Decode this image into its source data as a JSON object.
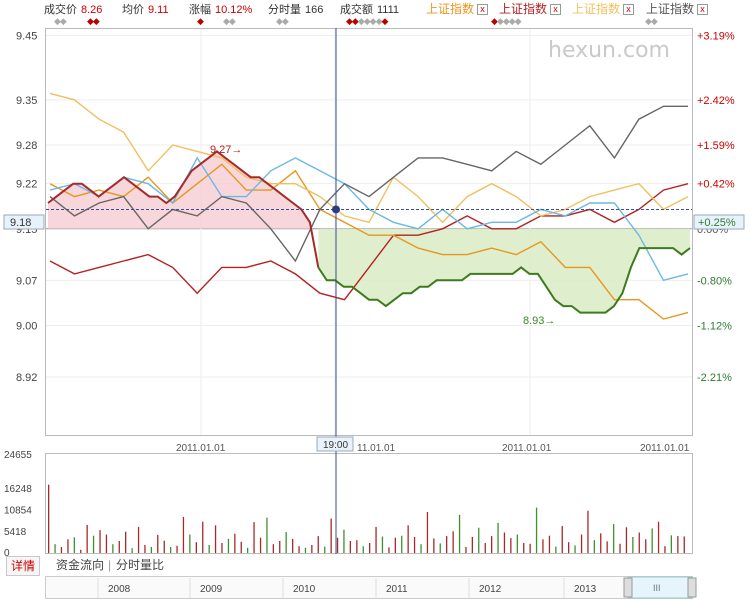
{
  "quote": {
    "close_label": "成交价",
    "close_value": "8.26",
    "avg_label": "均价",
    "avg_value": "9.11",
    "change_label": "涨幅",
    "change_value": "10.12%",
    "vol_label": "分时量",
    "vol_value": "166",
    "amount_label": "成交额",
    "amount_value": "1111"
  },
  "index_tabs": [
    {
      "label": "上证指数",
      "color": "#e8961e"
    },
    {
      "label": "上证指数",
      "color": "#b22222"
    },
    {
      "label": "上证指数",
      "color": "#f0c060"
    },
    {
      "label": "上证指数",
      "color": "#555555"
    }
  ],
  "close_mark": "x",
  "watermark": "hexun.com",
  "crosshair": {
    "time_label": "19:00",
    "price_label": "9.18",
    "pct_label": "+0.25%"
  },
  "annotations": {
    "high": "9.27→",
    "low": "8.93→"
  },
  "volume_axis": [
    "24655",
    "16248",
    "10854",
    "5418",
    "0"
  ],
  "bottom": {
    "detail_button": "详情",
    "tab_flow": "资金流向",
    "tab_ratio": "分时量比",
    "separator": "|"
  },
  "navigator": {
    "years": [
      "2008",
      "2009",
      "2010",
      "2011",
      "2012",
      "2013"
    ],
    "handle": "III"
  },
  "chart_data": {
    "type": "line",
    "prev_close": 9.15,
    "y_ticks": [
      9.45,
      9.35,
      9.28,
      9.22,
      9.15,
      9.07,
      9.0,
      8.92
    ],
    "y_tick_labels": [
      "9.45",
      "9.35",
      "9.28",
      "9.22",
      "9.15",
      "9.07",
      "9.00",
      "8.92"
    ],
    "y_pct_labels": [
      "+3.19%",
      "+2.42%",
      "+1.59%",
      "+0.42%",
      "0.00%",
      "-0.80%",
      "-1.12%",
      "-2.21%"
    ],
    "ylim": [
      8.83,
      9.46
    ],
    "x_tick_labels": [
      "2011.01.01",
      "11.01.01",
      "2011.01.01",
      "2011.01.01"
    ],
    "series": [
      {
        "color": "#b22222",
        "values": [
          9.1,
          9.08,
          9.09,
          9.1,
          9.11,
          9.09,
          9.05,
          9.09,
          9.09,
          9.1,
          9.08,
          9.05,
          9.04,
          9.09,
          9.14,
          9.14,
          9.15,
          9.17,
          9.15,
          9.15,
          9.17,
          9.17,
          9.18,
          9.16,
          9.18,
          9.21,
          9.22
        ]
      },
      {
        "color": "#e8961e",
        "values": [
          9.22,
          9.2,
          9.21,
          9.2,
          9.23,
          9.19,
          9.22,
          9.25,
          9.21,
          9.21,
          9.24,
          9.18,
          9.16,
          9.14,
          9.14,
          9.12,
          9.11,
          9.11,
          9.12,
          9.11,
          9.13,
          9.09,
          9.09,
          9.04,
          9.04,
          9.01,
          9.02
        ]
      },
      {
        "color": "#f0c060",
        "values": [
          9.36,
          9.35,
          9.32,
          9.3,
          9.24,
          9.28,
          9.27,
          9.26,
          9.23,
          9.22,
          9.22,
          9.2,
          9.17,
          9.16,
          9.23,
          9.2,
          9.16,
          9.2,
          9.22,
          9.2,
          9.17,
          9.18,
          9.2,
          9.21,
          9.22,
          9.18,
          9.2
        ]
      },
      {
        "color": "#6cb8e4",
        "values": [
          9.21,
          9.22,
          9.2,
          9.23,
          9.22,
          9.19,
          9.26,
          9.2,
          9.2,
          9.24,
          9.26,
          9.24,
          9.22,
          9.18,
          9.16,
          9.15,
          9.18,
          9.15,
          9.16,
          9.16,
          9.18,
          9.17,
          9.19,
          9.19,
          9.14,
          9.07,
          9.08
        ]
      },
      {
        "color": "#666666",
        "values": [
          9.2,
          9.17,
          9.19,
          9.2,
          9.15,
          9.18,
          9.17,
          9.2,
          9.19,
          9.15,
          9.1,
          9.18,
          9.22,
          9.2,
          9.23,
          9.26,
          9.26,
          9.25,
          9.24,
          9.27,
          9.25,
          9.28,
          9.31,
          9.26,
          9.32,
          9.34,
          9.34
        ]
      }
    ],
    "intraday": [
      9.19,
      9.2,
      9.21,
      9.22,
      9.22,
      9.21,
      9.2,
      9.21,
      9.22,
      9.23,
      9.22,
      9.21,
      9.2,
      9.2,
      9.19,
      9.2,
      9.22,
      9.24,
      9.25,
      9.26,
      9.27,
      9.26,
      9.25,
      9.24,
      9.23,
      9.23,
      9.22,
      9.21,
      9.2,
      9.19,
      9.18,
      9.16,
      9.09,
      9.07,
      9.07,
      9.06,
      9.06,
      9.05,
      9.04,
      9.04,
      9.03,
      9.04,
      9.05,
      9.05,
      9.06,
      9.06,
      9.07,
      9.07,
      9.07,
      9.07,
      9.08,
      9.08,
      9.08,
      9.08,
      9.08,
      9.08,
      9.09,
      9.08,
      9.08,
      9.06,
      9.04,
      9.03,
      9.03,
      9.02,
      9.02,
      9.02,
      9.02,
      9.03,
      9.05,
      9.09,
      9.12,
      9.12,
      9.12,
      9.12,
      9.12,
      9.11,
      9.12
    ],
    "volume_max": 24655,
    "volume": [
      17000,
      2200,
      1500,
      3400,
      3900,
      800,
      7000,
      4300,
      5700,
      4600,
      2200,
      3000,
      5300,
      1200,
      6500,
      2000,
      1500,
      4500,
      3100,
      1500,
      1800,
      9000,
      4600,
      2700,
      7800,
      2000,
      6900,
      2500,
      3500,
      4800,
      2800,
      1300,
      7700,
      3800,
      8800,
      2200,
      3000,
      5200,
      3500,
      1700,
      1300,
      2000,
      4200,
      1600,
      8600,
      3800,
      5800,
      3000,
      3200,
      1700,
      2500,
      6500,
      4100,
      1400,
      3800,
      4300,
      6900,
      4000,
      2200,
      10200,
      3600,
      2400,
      4200,
      5400,
      9500,
      1500,
      4000,
      6300,
      2500,
      4200,
      7500,
      5100,
      3700,
      4600,
      2500,
      2300,
      11300,
      3400,
      4300,
      1600,
      6700,
      2700,
      1900,
      4600,
      10500,
      3200,
      4900,
      2900,
      7200,
      2300,
      6400,
      4000,
      5100,
      3400,
      6100,
      7800,
      1700,
      4400,
      4200,
      4100
    ]
  }
}
